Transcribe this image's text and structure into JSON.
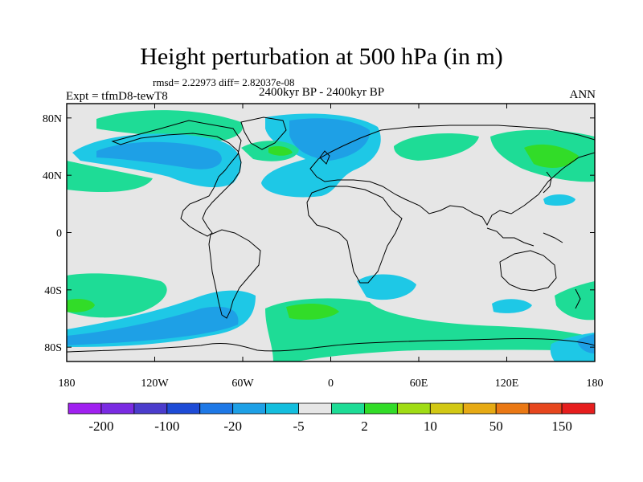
{
  "title": "Height perturbation at 500 hPa (in m)",
  "stats": "rmsd= 2.22973 diff= 2.82037e-08",
  "experiment": "Expt = tfmD8-tewT8",
  "period": "2400kyr BP - 2400kyr BP",
  "season": "ANN",
  "lat_ticks": [
    "80N",
    "40N",
    "0",
    "40S",
    "80S"
  ],
  "lon_ticks": [
    "180",
    "120W",
    "60W",
    "0",
    "60E",
    "120E",
    "180"
  ],
  "colorbar": {
    "labels": [
      "-200",
      "-100",
      "-20",
      "-5",
      "2",
      "10",
      "50",
      "150"
    ],
    "colors": [
      "#a020f0",
      "#7a2be2",
      "#4b3ccc",
      "#1e4bd6",
      "#1e78e6",
      "#1ea0e6",
      "#14bede",
      "#e6e6e6",
      "#1edc96",
      "#32dc28",
      "#a0dc14",
      "#d2c814",
      "#e6aa14",
      "#ea7814",
      "#e6461e",
      "#e61e1e"
    ]
  },
  "colors": {
    "map_background": "#e6e6e6",
    "light_blue": "#1ec8e6",
    "mid_blue": "#1ea0e6",
    "light_green": "#1edc96",
    "green": "#32dc28"
  }
}
